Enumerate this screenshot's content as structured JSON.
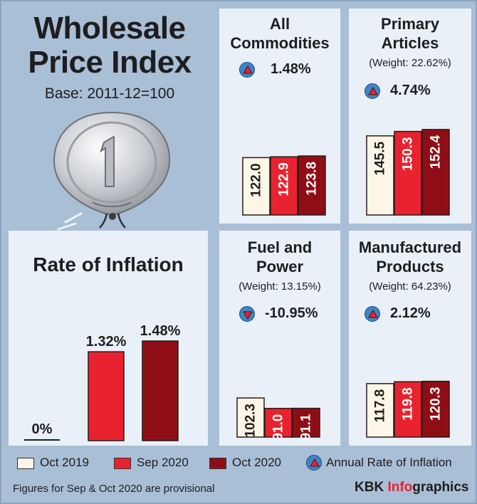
{
  "header": {
    "title_line1": "Wholesale",
    "title_line2": "Price Index",
    "base": "Base: 2011-12=100"
  },
  "colors": {
    "oct2019": "#fdf6e6",
    "sep2020": "#e8232f",
    "oct2020": "#8f0e16",
    "panel_bg": "#e9f0f8",
    "page_bg": "#a9bfd6",
    "badge": "#3c86c6"
  },
  "legend": {
    "items": [
      "Oct 2019",
      "Sep 2020",
      "Oct 2020"
    ],
    "annual_label": "Annual Rate of Inflation"
  },
  "footer": {
    "note": "Figures for Sep & Oct 2020 are provisional",
    "brand_kbk": "KBK ",
    "brand_info": "Info",
    "brand_graphics": "graphics"
  },
  "chart_data": [
    {
      "type": "bar",
      "title": "Rate of Inflation",
      "categories": [
        "Oct 2019",
        "Sep 2020",
        "Oct 2020"
      ],
      "values": [
        0,
        1.32,
        1.48
      ],
      "labels": [
        "0%",
        "1.32%",
        "1.48%"
      ]
    },
    {
      "type": "bar",
      "title": "All Commodities",
      "weight": "",
      "change": "1.48%",
      "direction": "up",
      "categories": [
        "Oct 2019",
        "Sep 2020",
        "Oct 2020"
      ],
      "values": [
        122.0,
        122.9,
        123.8
      ],
      "labels": [
        "122.0",
        "122.9",
        "123.8"
      ]
    },
    {
      "type": "bar",
      "title": "Primary Articles",
      "title_lines": [
        "Primary",
        "Articles"
      ],
      "weight": "(Weight: 22.62%)",
      "change": "4.74%",
      "direction": "up",
      "categories": [
        "Oct 2019",
        "Sep 2020",
        "Oct 2020"
      ],
      "values": [
        145.5,
        150.3,
        152.4
      ],
      "labels": [
        "145.5",
        "150.3",
        "152.4"
      ]
    },
    {
      "type": "bar",
      "title": "Fuel and Power",
      "title_lines": [
        "Fuel and",
        "Power"
      ],
      "weight": "(Weight: 13.15%)",
      "change": "-10.95%",
      "direction": "down",
      "categories": [
        "Oct 2019",
        "Sep 2020",
        "Oct 2020"
      ],
      "values": [
        102.3,
        91.0,
        91.1
      ],
      "labels": [
        "102.3",
        "91.0",
        "91.1"
      ]
    },
    {
      "type": "bar",
      "title": "Manufactured Products",
      "title_lines": [
        "Manufactured",
        "Products"
      ],
      "weight": "(Weight: 64.23%)",
      "change": "2.12%",
      "direction": "up",
      "categories": [
        "Oct 2019",
        "Sep 2020",
        "Oct 2020"
      ],
      "values": [
        117.8,
        119.8,
        120.3
      ],
      "labels": [
        "117.8",
        "119.8",
        "120.3"
      ]
    }
  ]
}
